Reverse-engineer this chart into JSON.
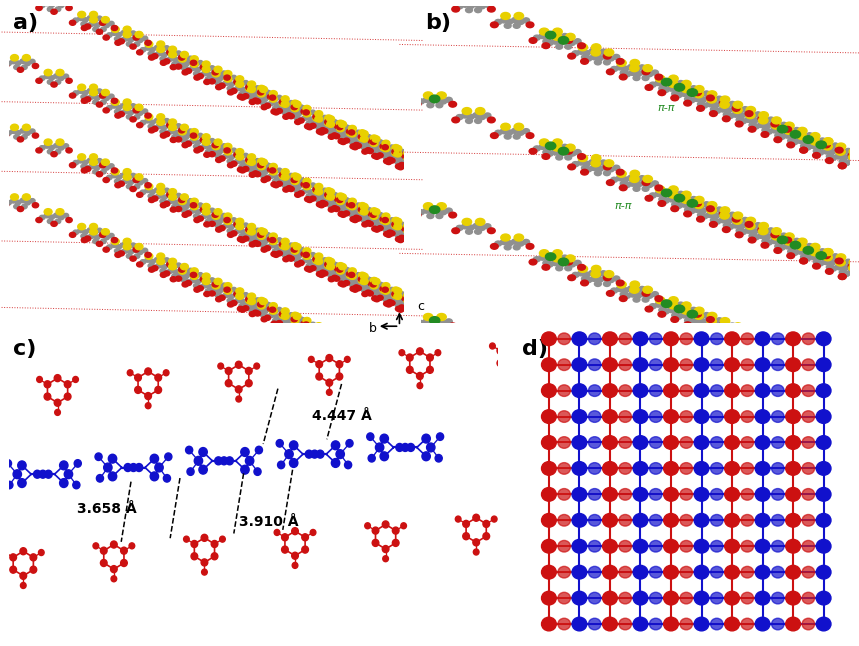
{
  "figure_width": 8.59,
  "figure_height": 6.46,
  "background_color": "#ffffff",
  "colors": {
    "gray": "#909090",
    "red": "#cc1111",
    "yellow": "#e8d000",
    "green": "#228B22",
    "blue": "#1111cc",
    "black": "#000000"
  },
  "distances": {
    "d1": "3.658 Å",
    "d2": "3.910 Å",
    "d3": "4.447 Å"
  },
  "pi_pi_label": "π-π"
}
